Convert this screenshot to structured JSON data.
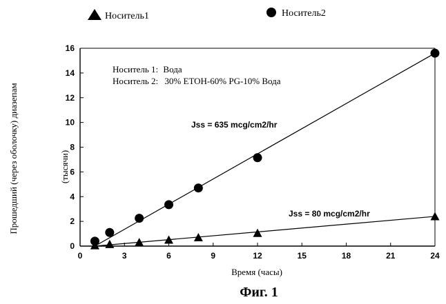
{
  "chart_data": {
    "type": "scatter",
    "title": "Фиг. 1",
    "xlabel": "Время (часы)",
    "ylabel": "Прошедший (через оболочку) диазепам",
    "ylabel_sub": "(тысячи)",
    "xlim": [
      0,
      24
    ],
    "ylim": [
      0,
      16
    ],
    "xticks": [
      0,
      3,
      6,
      9,
      12,
      15,
      18,
      21,
      24
    ],
    "yticks": [
      0,
      2,
      4,
      6,
      8,
      10,
      12,
      14,
      16
    ],
    "grid": false,
    "legend": {
      "placement": "top",
      "entries": [
        {
          "marker": "triangle",
          "label": "Носитель1"
        },
        {
          "marker": "circle",
          "label": "Носитель2"
        }
      ]
    },
    "notes": [
      {
        "prefix": "Носитель 1:",
        "text": "Вода"
      },
      {
        "prefix": "Носитель 2:",
        "text": "30% ETOH-60% PG-10% Вода"
      }
    ],
    "series": [
      {
        "name": "Носитель2",
        "marker": "circle",
        "x": [
          1,
          2,
          4,
          6,
          8,
          12,
          24
        ],
        "y": [
          0.4,
          1.1,
          2.25,
          3.35,
          4.7,
          7.15,
          15.6
        ],
        "fit": {
          "x": [
            1,
            24
          ],
          "y": [
            0.0,
            15.6
          ],
          "label": "Jss = 635 mcg/cm2/hr"
        }
      },
      {
        "name": "Носитель1",
        "marker": "triangle",
        "x": [
          1,
          2,
          4,
          6,
          8,
          12,
          24
        ],
        "y": [
          0.05,
          0.15,
          0.3,
          0.5,
          0.7,
          1.05,
          2.4
        ],
        "fit": {
          "x": [
            1,
            24
          ],
          "y": [
            0.0,
            2.4
          ],
          "label": "Jss = 80 mcg/cm2/hr"
        }
      }
    ]
  },
  "colors": {
    "ink": "#000000",
    "background": "#ffffff"
  }
}
